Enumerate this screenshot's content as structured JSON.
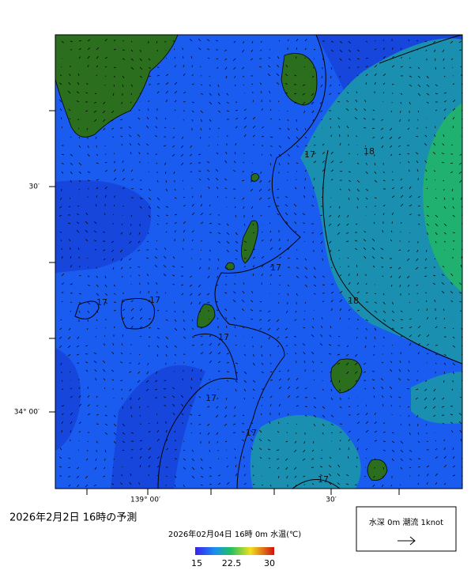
{
  "map": {
    "lat_labels": [
      "30′",
      "34° 00′"
    ],
    "lon_labels": [
      "139° 00′",
      "30′"
    ],
    "contour_labels": [
      "17",
      "17",
      "17",
      "17",
      "17",
      "17",
      "17",
      "17",
      "18",
      "18"
    ]
  },
  "title": "2026年2月2日 16時の予測",
  "colorbar": {
    "caption": "2026年02月04日 16時 0m 水温(℃)",
    "tick_labels": [
      "15",
      "22.5",
      "30"
    ]
  },
  "legend": {
    "label": "水深 0m 潮流 1knot"
  }
}
